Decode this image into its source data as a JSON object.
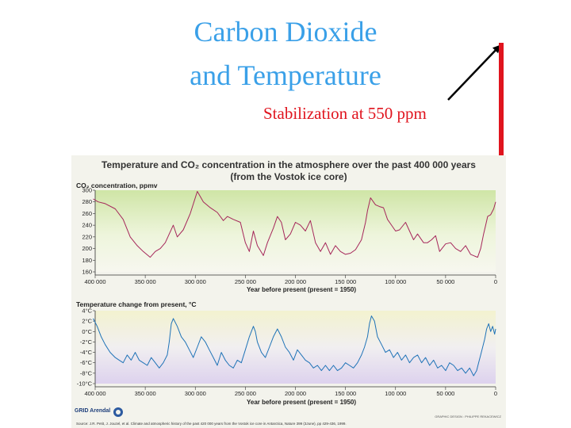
{
  "slide": {
    "title_line1": "Carbon Dioxide",
    "title_line2": "and Temperature",
    "annotation": "Stabilization at 550 ppm",
    "colors": {
      "title": "#3aa0e8",
      "annotation": "#e0141e",
      "bar": "#e0141e"
    }
  },
  "figure": {
    "title_line1": "Temperature and CO₂ concentration in the atmosphere over the past 400 000 years",
    "title_line2": "(from the Vostok ice core)",
    "logo_text": "GRID Arendal",
    "credit": "GRAPHIC DESIGN : PHILIPPE REKACEWICZ",
    "source": "Source: J.R. Petit, J. Jouzel, et al. Climate and atmospheric history of the past 420 000 years from the Vostok ice core in Antarctica, Nature 399 (3June), pp 429-436, 1999."
  },
  "chart_data": [
    {
      "type": "line",
      "ylabel": "CO₂ concentration, ppmv",
      "xlabel": "Year before present (present = 1950)",
      "ylim": [
        160,
        300
      ],
      "yticks": [
        "300",
        "280",
        "260",
        "240",
        "220",
        "200",
        "180",
        "160"
      ],
      "xlim": [
        400000,
        0
      ],
      "xticks": [
        "400 000",
        "350 000",
        "300 000",
        "250 000",
        "200 000",
        "150 000",
        "100 000",
        "50 000",
        "0"
      ],
      "grid": false,
      "series": [
        {
          "color": "#a5265a",
          "x": [
            402000,
            397000,
            390000,
            380000,
            372000,
            365000,
            358000,
            352000,
            345000,
            340000,
            335000,
            330000,
            326000,
            322000,
            318000,
            312000,
            305000,
            298000,
            292000,
            285000,
            278000,
            272000,
            268000,
            262000,
            255000,
            250000,
            246000,
            242000,
            238000,
            232000,
            228000,
            222000,
            218000,
            214000,
            210000,
            205000,
            200000,
            195000,
            190000,
            185000,
            180000,
            175000,
            170000,
            165000,
            160000,
            155000,
            150000,
            145000,
            140000,
            134000,
            130000,
            128000,
            125000,
            120000,
            116000,
            112000,
            108000,
            104000,
            100000,
            96000,
            90000,
            86000,
            82000,
            78000,
            72000,
            68000,
            64000,
            60000,
            56000,
            50000,
            45000,
            40000,
            35000,
            30000,
            25000,
            21000,
            18000,
            15000,
            12000,
            10000,
            8000,
            5000,
            2000,
            0
          ],
          "y": [
            285,
            280,
            277,
            268,
            250,
            220,
            205,
            195,
            185,
            195,
            200,
            210,
            225,
            240,
            220,
            232,
            260,
            298,
            280,
            270,
            262,
            248,
            255,
            250,
            245,
            210,
            195,
            230,
            205,
            188,
            210,
            235,
            255,
            245,
            215,
            225,
            245,
            240,
            230,
            248,
            210,
            195,
            210,
            190,
            205,
            195,
            190,
            192,
            198,
            215,
            245,
            265,
            287,
            275,
            272,
            270,
            250,
            240,
            230,
            232,
            245,
            230,
            215,
            225,
            210,
            210,
            215,
            222,
            195,
            208,
            210,
            200,
            195,
            205,
            190,
            187,
            185,
            200,
            225,
            240,
            255,
            258,
            268,
            280
          ]
        }
      ]
    },
    {
      "type": "line",
      "ylabel": "Temperature change from present, °C",
      "xlabel": "Year before present (present = 1950)",
      "ylim": [
        -10,
        4
      ],
      "yticks": [
        "4°C",
        "2°C",
        "0°C",
        "-2°C",
        "-4°C",
        "-6°C",
        "-8°C",
        "-10°C"
      ],
      "xlim": [
        400000,
        0
      ],
      "xticks": [
        "400 000",
        "350 000",
        "300 000",
        "250 000",
        "200 000",
        "150 000",
        "100 000",
        "50 000",
        "0"
      ],
      "grid": false,
      "series": [
        {
          "color": "#1f73b7",
          "x": [
            402000,
            398000,
            394000,
            390000,
            385000,
            380000,
            376000,
            372000,
            368000,
            364000,
            360000,
            356000,
            352000,
            348000,
            344000,
            340000,
            336000,
            332000,
            328000,
            326000,
            324000,
            322000,
            318000,
            314000,
            310000,
            306000,
            302000,
            298000,
            294000,
            290000,
            286000,
            282000,
            278000,
            274000,
            270000,
            266000,
            262000,
            258000,
            254000,
            250000,
            246000,
            242000,
            240000,
            238000,
            234000,
            230000,
            226000,
            222000,
            218000,
            214000,
            210000,
            206000,
            202000,
            198000,
            194000,
            190000,
            186000,
            182000,
            178000,
            174000,
            170000,
            166000,
            162000,
            158000,
            154000,
            150000,
            146000,
            142000,
            138000,
            134000,
            131000,
            128000,
            126000,
            124000,
            121000,
            118000,
            114000,
            110000,
            106000,
            102000,
            98000,
            94000,
            90000,
            86000,
            82000,
            78000,
            74000,
            70000,
            66000,
            62000,
            58000,
            54000,
            50000,
            46000,
            42000,
            38000,
            34000,
            30000,
            26000,
            22000,
            19000,
            17000,
            15000,
            13000,
            11000,
            9000,
            7000,
            5000,
            3000,
            1000,
            0
          ],
          "y": [
            2.5,
            1.0,
            -1.0,
            -2.5,
            -4.0,
            -5.0,
            -5.5,
            -6.0,
            -4.5,
            -5.5,
            -4.0,
            -5.5,
            -6.0,
            -6.5,
            -5.0,
            -6.0,
            -7.0,
            -6.0,
            -4.5,
            -2.0,
            1.5,
            2.5,
            1.0,
            -1.0,
            -2.0,
            -3.5,
            -5.0,
            -3.0,
            -1.0,
            -2.0,
            -3.5,
            -5.0,
            -6.5,
            -4.0,
            -5.5,
            -6.5,
            -7.0,
            -5.5,
            -6.0,
            -3.5,
            -1.0,
            1.0,
            0.0,
            -2.0,
            -4.0,
            -5.0,
            -3.0,
            -1.0,
            0.5,
            -1.0,
            -3.0,
            -4.0,
            -5.5,
            -3.5,
            -4.5,
            -5.5,
            -6.0,
            -7.0,
            -6.5,
            -7.5,
            -6.5,
            -7.5,
            -6.5,
            -7.5,
            -7.0,
            -6.0,
            -6.5,
            -7.0,
            -6.0,
            -4.5,
            -3.0,
            -1.0,
            1.5,
            3.0,
            2.0,
            -1.0,
            -2.5,
            -4.0,
            -3.5,
            -5.0,
            -4.0,
            -5.5,
            -4.5,
            -6.0,
            -5.0,
            -4.5,
            -6.0,
            -5.0,
            -6.5,
            -5.5,
            -7.0,
            -6.5,
            -7.5,
            -6.0,
            -6.5,
            -7.5,
            -7.0,
            -8.0,
            -7.0,
            -8.5,
            -7.5,
            -6.0,
            -4.5,
            -3.0,
            -1.5,
            0.5,
            1.5,
            0.0,
            1.0,
            -0.5,
            0.5
          ]
        }
      ]
    }
  ]
}
